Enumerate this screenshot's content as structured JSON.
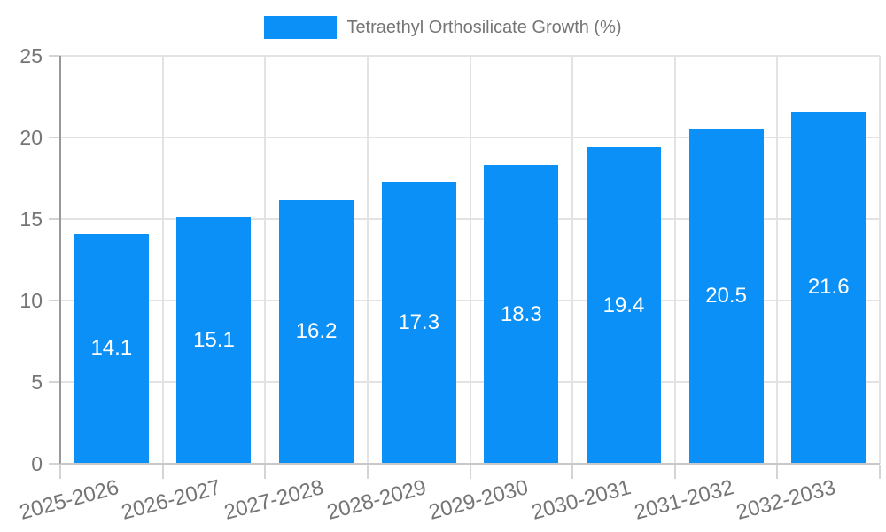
{
  "chart_data": {
    "type": "bar",
    "title": "",
    "legend_label": "Tetraethyl Orthosilicate Growth (%)",
    "legend_position": "top-center",
    "categories": [
      "2025-2026",
      "2026-2027",
      "2027-2028",
      "2028-2029",
      "2029-2030",
      "2030-2031",
      "2031-2032",
      "2032-2033"
    ],
    "values": [
      14.1,
      15.1,
      16.2,
      17.3,
      18.3,
      19.4,
      20.5,
      21.6
    ],
    "value_labels": [
      "14.1",
      "15.1",
      "16.2",
      "17.3",
      "18.3",
      "19.4",
      "20.5",
      "21.6"
    ],
    "xlabel": "",
    "ylabel": "",
    "ylim": [
      0,
      25
    ],
    "y_ticks": [
      0,
      5,
      10,
      15,
      20,
      25
    ],
    "grid": true,
    "x_label_rotation_deg": -15,
    "colors": {
      "bar": "#0b90f8",
      "value_label_text": "#ffffff",
      "axis_text": "#757575",
      "legend_text": "#757575",
      "gridline": "#e3e3e3",
      "tick_mark": "#d4d4d4",
      "y_axis_line": "#999999",
      "x_axis_line": "#c8c8c8",
      "background": "#ffffff"
    }
  }
}
